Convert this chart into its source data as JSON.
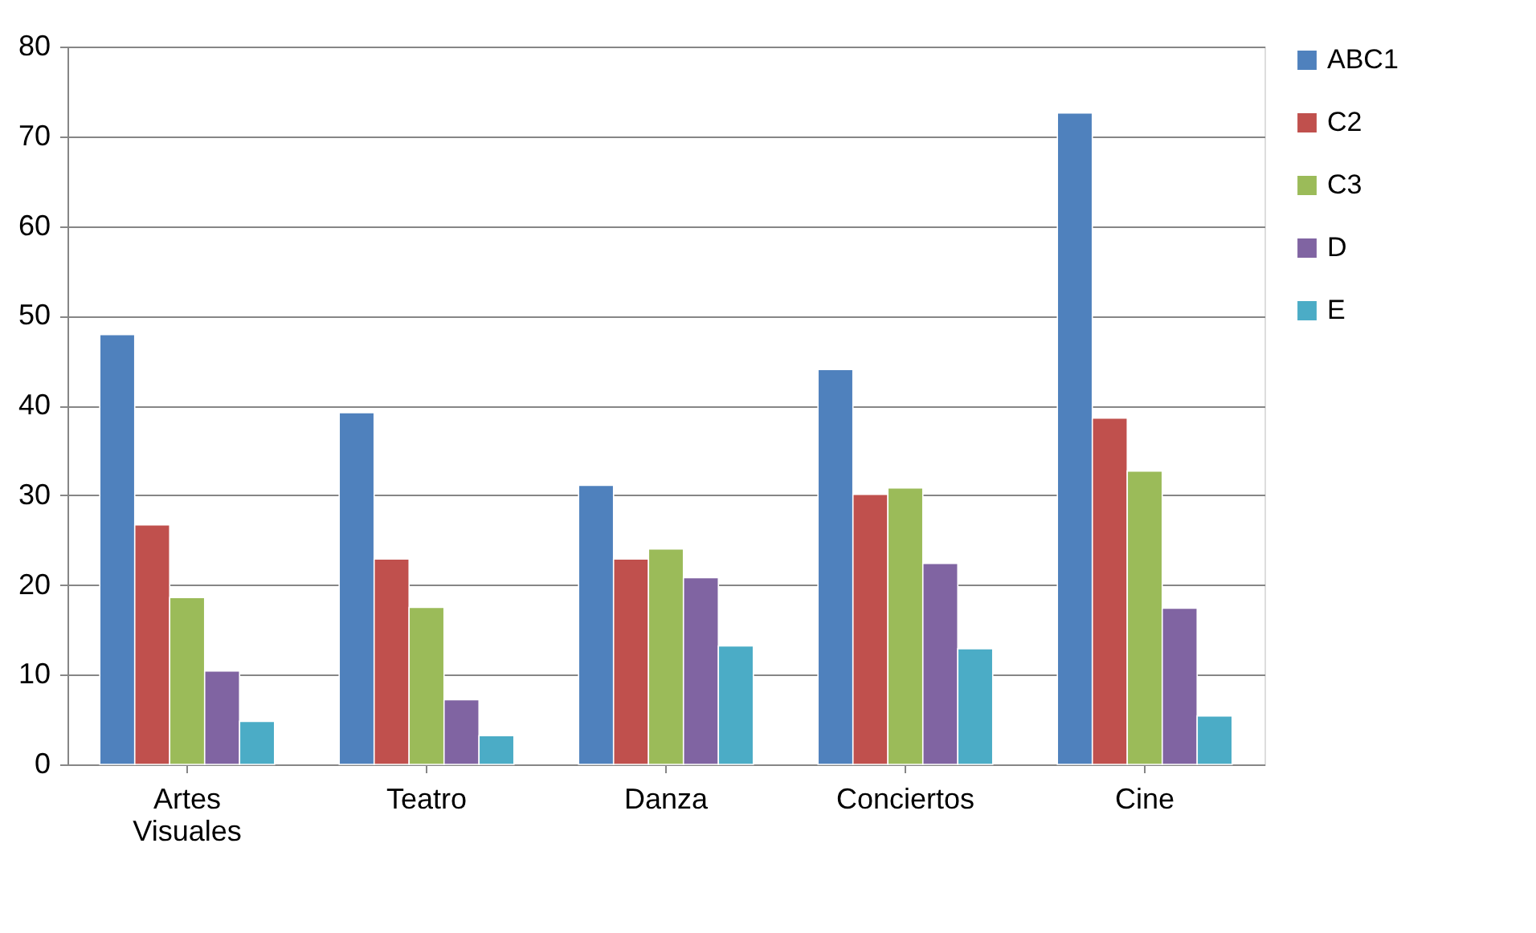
{
  "chart_data": {
    "type": "bar",
    "categories": [
      "Artes Visuales",
      "Teatro",
      "Danza",
      "Conciertos",
      "Cine"
    ],
    "series": [
      {
        "name": "ABC1",
        "color": "#4f81bd",
        "values": [
          47.9,
          39.2,
          31.1,
          44.0,
          72.6
        ]
      },
      {
        "name": "C2",
        "color": "#c0504d",
        "values": [
          26.7,
          22.9,
          22.9,
          30.1,
          38.6
        ]
      },
      {
        "name": "C3",
        "color": "#9bbb59",
        "values": [
          18.6,
          17.5,
          24.0,
          30.8,
          32.7
        ]
      },
      {
        "name": "D",
        "color": "#8064a2",
        "values": [
          10.4,
          7.2,
          20.8,
          22.4,
          17.4
        ]
      },
      {
        "name": "E",
        "color": "#4bacc6",
        "values": [
          4.8,
          3.2,
          13.2,
          12.9,
          5.4
        ]
      }
    ],
    "ylim": [
      0,
      80
    ],
    "yticks": [
      0,
      10,
      20,
      30,
      40,
      50,
      60,
      70,
      80
    ],
    "grid": "y",
    "legend": "right"
  }
}
